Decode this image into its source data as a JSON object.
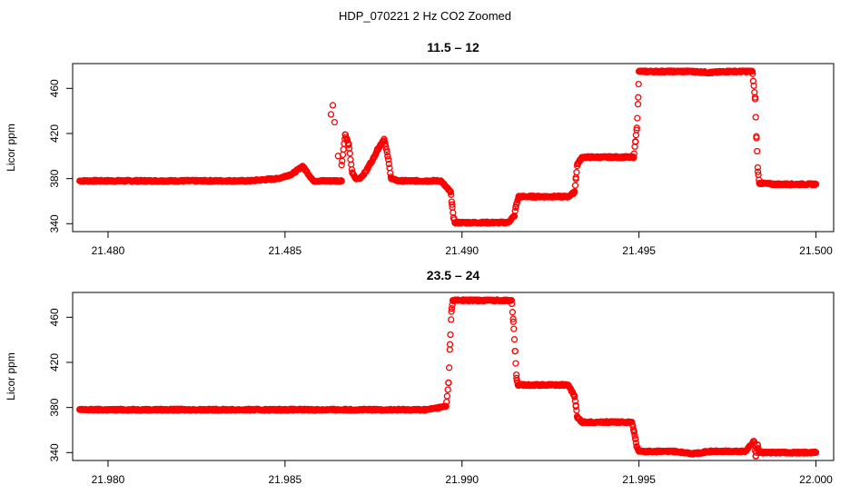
{
  "figure_title": "HDP_070221  2 Hz CO2 Zoomed",
  "marker_color": "#ff0000",
  "chart_data": [
    {
      "type": "scatter",
      "title": "11.5 – 12",
      "xlabel": "",
      "ylabel": "Licor ppm",
      "xlim": [
        21.479,
        21.5005
      ],
      "ylim": [
        333,
        482
      ],
      "x_ticks": [
        21.48,
        21.485,
        21.49,
        21.495,
        21.5
      ],
      "x_tick_labels": [
        "21.480",
        "21.485",
        "21.490",
        "21.495",
        "21.500"
      ],
      "y_ticks": [
        340,
        380,
        420,
        460
      ],
      "y_tick_labels": [
        "340",
        "380",
        "420",
        "460"
      ],
      "grid": false,
      "series": [
        {
          "color": "#ff0000",
          "x": [
            21.4792,
            21.48,
            21.481,
            21.482,
            21.483,
            21.484,
            21.4848,
            21.4852,
            21.4855,
            21.4858,
            21.4862,
            21.4866,
            21.4863,
            21.48635,
            21.4864,
            21.4865,
            21.4866,
            21.4867,
            21.4868,
            21.4869,
            21.487,
            21.4871,
            21.4872,
            21.4873,
            21.4874,
            21.4875,
            21.4876,
            21.4877,
            21.4878,
            21.4879,
            21.488,
            21.4882,
            21.4886,
            21.489,
            21.4894,
            21.48968,
            21.48972,
            21.48976,
            21.4898,
            21.4902,
            21.4906,
            21.491,
            21.4913,
            21.49148,
            21.49152,
            21.4916,
            21.492,
            21.4925,
            21.493,
            21.49318,
            21.49322,
            21.49326,
            21.4934,
            21.494,
            21.4945,
            21.49485,
            21.4949,
            21.49494,
            21.49498,
            21.495,
            21.4955,
            21.496,
            21.4965,
            21.497,
            21.4975,
            21.498,
            21.4982,
            21.49828,
            21.49832,
            21.49836,
            21.4984,
            21.4988,
            21.4992,
            21.4996,
            21.5
          ],
          "y": [
            378,
            378,
            378,
            378,
            378,
            378,
            380,
            384,
            391,
            378,
            378,
            378,
            437,
            445,
            430,
            400,
            392,
            419,
            410,
            385,
            380,
            380,
            383,
            387,
            393,
            398,
            405,
            410,
            415,
            400,
            380,
            378,
            378,
            378,
            378,
            368,
            357,
            345,
            341,
            341,
            341,
            341,
            341,
            347,
            355,
            364,
            364,
            364,
            364,
            368,
            381,
            393,
            399,
            399,
            399,
            399,
            413,
            425,
            452,
            475,
            475,
            475,
            475,
            474,
            475,
            475,
            475,
            452,
            416,
            386,
            376,
            375,
            375,
            375,
            375
          ]
        }
      ]
    },
    {
      "type": "scatter",
      "title": "23.5 – 24",
      "xlabel": "",
      "ylabel": "Licor ppm",
      "xlim": [
        21.979,
        22.0005
      ],
      "ylim": [
        333,
        482
      ],
      "x_ticks": [
        21.98,
        21.985,
        21.99,
        21.995,
        22.0
      ],
      "x_tick_labels": [
        "21.980",
        "21.985",
        "21.990",
        "21.995",
        "22.000"
      ],
      "y_ticks": [
        340,
        380,
        420,
        460
      ],
      "y_tick_labels": [
        "340",
        "380",
        "420",
        "460"
      ],
      "grid": false,
      "series": [
        {
          "color": "#ff0000",
          "x": [
            21.9792,
            21.98,
            21.981,
            21.982,
            21.983,
            21.984,
            21.985,
            21.986,
            21.987,
            21.988,
            21.989,
            21.98955,
            21.98962,
            21.98966,
            21.9897,
            21.98974,
            21.9898,
            21.9902,
            21.9906,
            21.991,
            21.9914,
            21.99145,
            21.9915,
            21.99154,
            21.99158,
            21.9916,
            21.992,
            21.9925,
            21.993,
            21.99318,
            21.99322,
            21.99326,
            21.9934,
            21.994,
            21.9945,
            21.9948,
            21.99486,
            21.9949,
            21.99494,
            21.995,
            21.9955,
            21.996,
            21.9965,
            21.997,
            21.9975,
            21.998,
            21.99825,
            21.9983,
            21.99835,
            21.9984,
            21.9988,
            21.9992,
            21.9996,
            22.0
          ],
          "y": [
            378,
            378,
            378,
            378,
            378,
            378,
            378,
            378,
            378,
            378,
            378,
            381,
            402,
            436,
            465,
            475,
            475,
            475,
            475,
            475,
            475,
            456,
            430,
            406,
            400,
            400,
            400,
            400,
            400,
            390,
            381,
            371,
            367,
            367,
            367,
            367,
            359,
            352,
            345,
            341,
            341,
            341,
            339,
            341,
            341,
            341,
            350,
            337,
            347,
            340,
            340,
            340,
            340,
            340
          ]
        }
      ]
    }
  ]
}
